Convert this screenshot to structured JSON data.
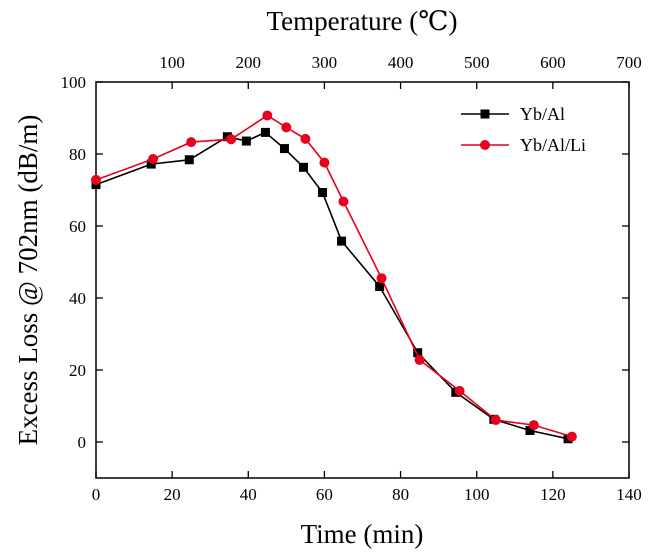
{
  "chart_data": {
    "type": "line",
    "title": "",
    "xlabel": "Time (min)",
    "ylabel": "Excess Loss @ 702nm (dB/m)",
    "x2label": "Temperature (℃)",
    "xlim": [
      0,
      140
    ],
    "ylim": [
      -10,
      100
    ],
    "x2lim": [
      0,
      700
    ],
    "x_ticks": [
      0,
      20,
      40,
      60,
      80,
      100,
      120,
      140
    ],
    "y_ticks": [
      0,
      20,
      40,
      60,
      80,
      100
    ],
    "x2_ticks": [
      100,
      200,
      300,
      400,
      500,
      600,
      700
    ],
    "grid": false,
    "legend_position": "top-right",
    "series": [
      {
        "name": "Yb/Al",
        "color": "#000000",
        "marker": "square",
        "x": [
          0,
          14.5,
          24.5,
          34.5,
          39.5,
          44.5,
          49.5,
          54.5,
          59.5,
          64.5,
          74.5,
          84.5,
          94.5,
          104.5,
          114,
          124
        ],
        "y": [
          71.5,
          77.2,
          78.4,
          84.8,
          83.6,
          86,
          81.5,
          76.3,
          69.3,
          55.8,
          43.2,
          24.8,
          13.8,
          6.3,
          3.2,
          0.9
        ]
      },
      {
        "name": "Yb/Al/Li",
        "color": "#e8001c",
        "marker": "circle",
        "x": [
          0,
          15,
          25,
          35.5,
          45,
          50,
          55,
          60,
          65,
          75,
          85,
          95.5,
          105,
          115,
          125
        ],
        "y": [
          72.8,
          78.6,
          83.3,
          84.1,
          90.7,
          87.4,
          84.2,
          77.6,
          66.8,
          45.5,
          22.8,
          14.2,
          6.1,
          4.7,
          1.5
        ]
      }
    ]
  }
}
